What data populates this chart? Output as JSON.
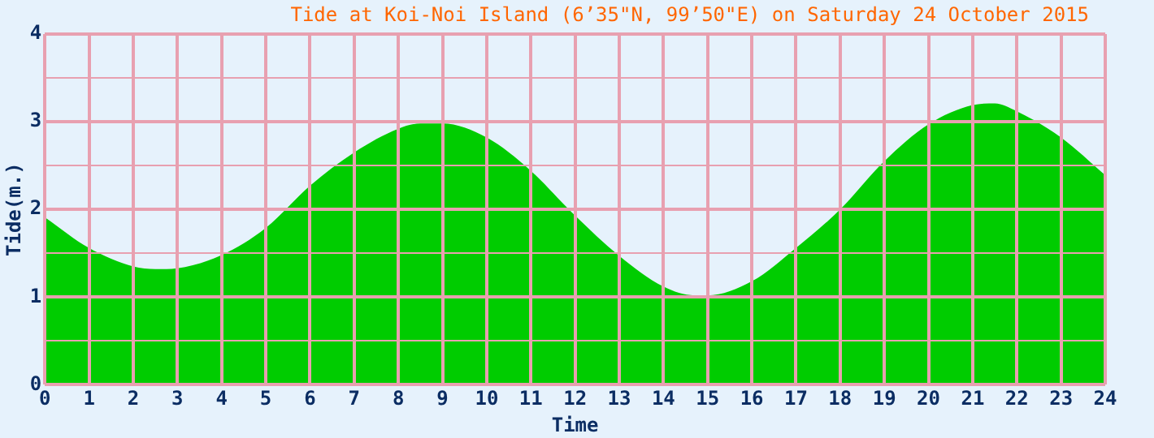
{
  "chart_data": {
    "type": "area",
    "title": "Tide at Koi-Noi Island (6’35\"N, 99’50\"E) on Saturday 24 October 2015",
    "xlabel": "Time",
    "ylabel": "Tide(m.)",
    "x": [
      0,
      1,
      2,
      2.5,
      3,
      4,
      5,
      6,
      7,
      8,
      8.5,
      9,
      10,
      11,
      12,
      13,
      14,
      14.7,
      15,
      16,
      17,
      18,
      19,
      20,
      21,
      21.5,
      22,
      23,
      24
    ],
    "values": [
      1.91,
      1.56,
      1.35,
      1.32,
      1.33,
      1.48,
      1.79,
      2.27,
      2.65,
      2.92,
      2.98,
      2.98,
      2.82,
      2.44,
      1.93,
      1.47,
      1.12,
      1.02,
      1.02,
      1.18,
      1.56,
      2.0,
      2.55,
      2.97,
      3.19,
      3.21,
      3.12,
      2.82,
      2.39
    ],
    "color": "#00cc00",
    "xlim": [
      0,
      24
    ],
    "xticks": [
      0,
      1,
      2,
      3,
      4,
      5,
      6,
      7,
      8,
      9,
      10,
      11,
      12,
      13,
      14,
      15,
      16,
      17,
      18,
      19,
      20,
      21,
      22,
      23,
      24
    ],
    "ylim": [
      0,
      4
    ],
    "yticks": [
      0,
      {
        "value": 0.5,
        "label": null
      },
      1,
      {
        "value": 1.5,
        "label": null
      },
      2,
      {
        "value": 2.5,
        "label": null
      },
      3,
      {
        "value": 3.5,
        "label": null
      },
      4
    ],
    "grid": true,
    "legend": false
  }
}
